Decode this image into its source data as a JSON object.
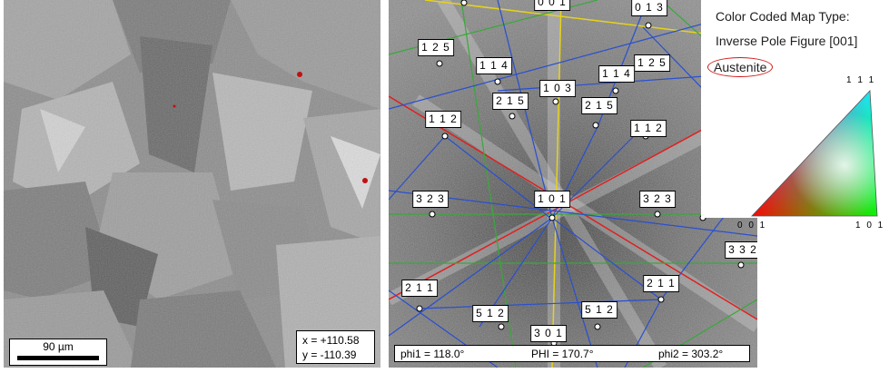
{
  "sem_image": {
    "scalebar_label": "90 µm",
    "coord_x": "x = +110.58",
    "coord_y": "y = -110.39"
  },
  "pattern": {
    "zones": [
      "0 0 1",
      "0 1 3",
      "1 2 5",
      "1 2 5",
      "1 1 4",
      "1 1 4",
      "1 0 3",
      "2 1 5",
      "2 1 5",
      "1 1 2",
      "1 1 2",
      "3 2 3",
      "1 0 1",
      "3 2 3",
      "3 3 2",
      "2 1 1",
      "2 1 1",
      "5 1 2",
      "5 1 2",
      "3 0 1"
    ],
    "phi1": "phi1 = 118.0°",
    "PHI": "PHI = 170.7°",
    "phi2": "phi2 = 303.2°"
  },
  "legend": {
    "title": "Color Coded Map Type:",
    "subtitle": "Inverse Pole Figure [001]",
    "phase": "Austenite",
    "corner_111": "1 1 1",
    "corner_001": "0 0 1",
    "corner_101": "1 0 1"
  }
}
